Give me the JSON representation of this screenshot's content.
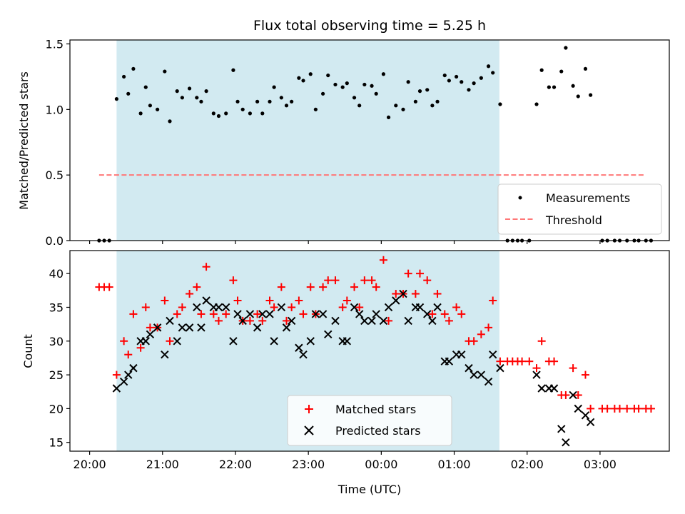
{
  "chart_data": [
    {
      "type": "scatter",
      "title": "Flux total observing time = 5.25 h",
      "ylabel": "Matched/Predicted stars",
      "xlabel": "",
      "x_unit": "hours since 20:00 UTC",
      "xlim": [
        -0.27,
        7.95
      ],
      "ylim": [
        0.0,
        1.53
      ],
      "yticks": [
        0.0,
        0.5,
        1.0,
        1.5
      ],
      "ytick_labels": [
        "0.0",
        "0.5",
        "1.0",
        "1.5"
      ],
      "shaded_span": [
        0.37,
        5.62
      ],
      "shaded_color": "#add8e6",
      "threshold": {
        "value": 0.5,
        "x_range": [
          0.13,
          7.62
        ],
        "color": "#ff7777"
      },
      "legend": {
        "position": "bottom-right",
        "entries": [
          "Measurements",
          "Threshold"
        ]
      },
      "series": [
        {
          "name": "Measurements",
          "marker": "dot",
          "color": "#000000",
          "x": [
            0.13,
            0.2,
            0.27,
            0.37,
            0.47,
            0.53,
            0.6,
            0.7,
            0.77,
            0.83,
            0.93,
            1.03,
            1.1,
            1.2,
            1.27,
            1.37,
            1.47,
            1.53,
            1.6,
            1.7,
            1.77,
            1.87,
            1.97,
            2.03,
            2.1,
            2.2,
            2.3,
            2.37,
            2.47,
            2.53,
            2.63,
            2.7,
            2.77,
            2.87,
            2.93,
            3.03,
            3.1,
            3.2,
            3.27,
            3.37,
            3.47,
            3.53,
            3.63,
            3.7,
            3.77,
            3.87,
            3.93,
            4.03,
            4.1,
            4.2,
            4.3,
            4.37,
            4.47,
            4.53,
            4.63,
            4.7,
            4.77,
            4.87,
            4.93,
            5.03,
            5.1,
            5.2,
            5.27,
            5.37,
            5.47,
            5.53,
            5.63,
            5.73,
            5.8,
            5.87,
            5.93,
            6.03,
            6.13,
            6.2,
            6.3,
            6.37,
            6.47,
            6.53,
            6.63,
            6.7,
            6.8,
            6.87,
            7.03,
            7.1,
            7.2,
            7.27,
            7.37,
            7.47,
            7.53,
            7.63,
            7.7
          ],
          "y": [
            0.0,
            0.0,
            0.0,
            1.08,
            1.25,
            1.12,
            1.31,
            0.97,
            1.17,
            1.03,
            1.0,
            1.29,
            0.91,
            1.14,
            1.09,
            1.16,
            1.09,
            1.06,
            1.14,
            0.97,
            0.95,
            0.97,
            1.3,
            1.06,
            1.0,
            0.97,
            1.06,
            0.97,
            1.06,
            1.17,
            1.09,
            1.03,
            1.06,
            1.24,
            1.22,
            1.27,
            1.0,
            1.12,
            1.26,
            1.19,
            1.17,
            1.2,
            1.09,
            1.03,
            1.19,
            1.18,
            1.12,
            1.27,
            0.94,
            1.03,
            1.0,
            1.21,
            1.06,
            1.14,
            1.15,
            1.03,
            1.06,
            1.26,
            1.22,
            1.25,
            1.21,
            1.15,
            1.2,
            1.24,
            1.33,
            1.28,
            1.04,
            0.0,
            0.0,
            0.0,
            0.0,
            0.0,
            1.04,
            1.3,
            1.17,
            1.17,
            1.29,
            1.47,
            1.18,
            1.1,
            1.31,
            1.11,
            0.0,
            0.0,
            0.0,
            0.0,
            0.0,
            0.0,
            0.0,
            0.0,
            0.0
          ]
        }
      ]
    },
    {
      "type": "scatter",
      "title": "",
      "xlabel": "Time (UTC)",
      "ylabel": "Count",
      "x_unit": "hours since 20:00 UTC",
      "xlim": [
        -0.27,
        7.95
      ],
      "ylim": [
        13.7,
        43.4
      ],
      "xticks": [
        0,
        1,
        2,
        3,
        4,
        5,
        6,
        7
      ],
      "xtick_labels": [
        "20:00",
        "21:00",
        "22:00",
        "23:00",
        "00:00",
        "01:00",
        "02:00",
        "03:00"
      ],
      "yticks": [
        15,
        20,
        25,
        30,
        35,
        40
      ],
      "ytick_labels": [
        "15",
        "20",
        "25",
        "30",
        "35",
        "40"
      ],
      "shaded_span": [
        0.37,
        5.62
      ],
      "shaded_color": "#add8e6",
      "legend": {
        "position": "bottom-center",
        "entries": [
          "Matched stars",
          "Predicted stars"
        ]
      },
      "series": [
        {
          "name": "Matched stars",
          "marker": "plus",
          "color": "#ff0000",
          "x": [
            0.13,
            0.2,
            0.27,
            0.37,
            0.47,
            0.53,
            0.6,
            0.7,
            0.77,
            0.83,
            0.93,
            1.03,
            1.1,
            1.2,
            1.27,
            1.37,
            1.47,
            1.53,
            1.6,
            1.7,
            1.77,
            1.87,
            1.97,
            2.03,
            2.1,
            2.2,
            2.3,
            2.37,
            2.47,
            2.53,
            2.63,
            2.7,
            2.77,
            2.87,
            2.93,
            3.03,
            3.1,
            3.2,
            3.27,
            3.37,
            3.47,
            3.53,
            3.63,
            3.7,
            3.77,
            3.87,
            3.93,
            4.03,
            4.1,
            4.2,
            4.3,
            4.37,
            4.47,
            4.53,
            4.63,
            4.7,
            4.77,
            4.87,
            4.93,
            5.03,
            5.1,
            5.2,
            5.27,
            5.37,
            5.47,
            5.53,
            5.63,
            5.73,
            5.8,
            5.87,
            5.93,
            6.03,
            6.13,
            6.2,
            6.3,
            6.37,
            6.47,
            6.53,
            6.63,
            6.7,
            6.8,
            6.87,
            7.03,
            7.1,
            7.2,
            7.27,
            7.37,
            7.47,
            7.53,
            7.63,
            7.7
          ],
          "y": [
            38,
            38,
            38,
            25,
            30,
            28,
            34,
            29,
            35,
            32,
            32,
            36,
            30,
            34,
            35,
            37,
            38,
            34,
            41,
            34,
            33,
            34,
            39,
            36,
            33,
            33,
            34,
            33,
            36,
            35,
            38,
            33,
            35,
            36,
            34,
            38,
            34,
            38,
            39,
            39,
            35,
            36,
            38,
            35,
            39,
            39,
            38,
            42,
            33,
            37,
            37,
            40,
            37,
            40,
            39,
            34,
            37,
            34,
            33,
            35,
            34,
            30,
            30,
            31,
            32,
            36,
            27,
            27,
            27,
            27,
            27,
            27,
            26,
            30,
            27,
            27,
            22,
            22,
            26,
            22,
            25,
            20,
            20,
            20,
            20,
            20,
            20,
            20,
            20,
            20,
            20
          ]
        },
        {
          "name": "Predicted stars",
          "marker": "x",
          "color": "#000000",
          "x": [
            0.37,
            0.47,
            0.53,
            0.6,
            0.7,
            0.77,
            0.83,
            0.93,
            1.03,
            1.1,
            1.2,
            1.27,
            1.37,
            1.47,
            1.53,
            1.6,
            1.7,
            1.77,
            1.87,
            1.97,
            2.03,
            2.1,
            2.2,
            2.3,
            2.37,
            2.47,
            2.53,
            2.63,
            2.7,
            2.77,
            2.87,
            2.93,
            3.03,
            3.1,
            3.2,
            3.27,
            3.37,
            3.47,
            3.53,
            3.63,
            3.7,
            3.77,
            3.87,
            3.93,
            4.03,
            4.1,
            4.2,
            4.3,
            4.37,
            4.47,
            4.53,
            4.63,
            4.7,
            4.77,
            4.87,
            4.93,
            5.03,
            5.1,
            5.2,
            5.27,
            5.37,
            5.47,
            5.53,
            5.63,
            6.13,
            6.2,
            6.3,
            6.37,
            6.47,
            6.53,
            6.63,
            6.7,
            6.8,
            6.87
          ],
          "y": [
            23,
            24,
            25,
            26,
            30,
            30,
            31,
            32,
            28,
            33,
            30,
            32,
            32,
            35,
            32,
            36,
            35,
            35,
            35,
            30,
            34,
            33,
            34,
            32,
            34,
            34,
            30,
            35,
            32,
            33,
            29,
            28,
            30,
            34,
            34,
            31,
            33,
            30,
            30,
            35,
            34,
            33,
            33,
            34,
            33,
            35,
            36,
            37,
            33,
            35,
            35,
            34,
            33,
            35,
            27,
            27,
            28,
            28,
            26,
            25,
            25,
            24,
            28,
            26,
            25,
            23,
            23,
            23,
            17,
            15,
            22,
            20,
            19,
            18
          ]
        }
      ]
    }
  ]
}
